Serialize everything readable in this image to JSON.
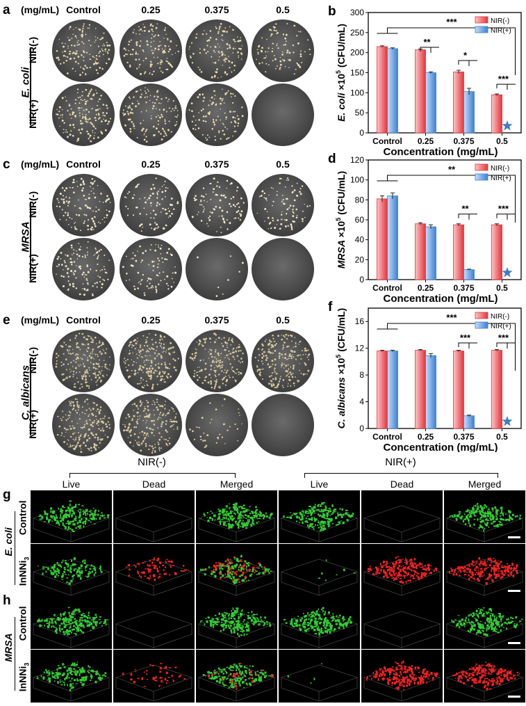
{
  "plates": [
    {
      "label": "a",
      "unit": "(mg/mL)",
      "columns": [
        "Control",
        "0.25",
        "0.375",
        "0.5"
      ],
      "organism": "E. coli",
      "rows": [
        "NIR(-)",
        "NIR(+)"
      ],
      "colony_density": [
        [
          0.55,
          0.5,
          0.45,
          0.35
        ],
        [
          0.6,
          0.5,
          0.4,
          0.0
        ]
      ],
      "colony_color": "#e8dcb0"
    },
    {
      "label": "c",
      "unit": "(mg/mL)",
      "columns": [
        "Control",
        "0.25",
        "0.375",
        "0.5"
      ],
      "organism": "MRSA",
      "rows": [
        "NIR(-)",
        "NIR(+)"
      ],
      "colony_density": [
        [
          0.5,
          0.35,
          0.35,
          0.35
        ],
        [
          0.5,
          0.35,
          0.03,
          0.0
        ]
      ],
      "colony_color": "#f0e8c8"
    },
    {
      "label": "e",
      "unit": "(mg/mL)",
      "columns": [
        "Control",
        "0.25",
        "0.375",
        "0.5"
      ],
      "organism": "C. albicans",
      "rows": [
        "NIR(-)",
        "NIR(+)"
      ],
      "colony_density": [
        [
          0.8,
          0.8,
          0.8,
          0.8
        ],
        [
          0.8,
          0.75,
          0.15,
          0.0
        ]
      ],
      "colony_color": "#d8caa0"
    }
  ],
  "chart_data": [
    {
      "panel": "b",
      "type": "bar",
      "categories": [
        "Control",
        "0.25",
        "0.375",
        "0.5"
      ],
      "series": [
        {
          "name": "NIR(-)",
          "values": [
            215,
            207,
            152,
            95
          ],
          "errors": [
            2,
            2,
            4,
            2
          ]
        },
        {
          "name": "NIR(+)",
          "values": [
            210,
            150,
            103,
            0
          ],
          "errors": [
            2,
            2,
            8,
            0
          ]
        }
      ],
      "xlabel": "Concentration (mg/mL)",
      "ylabel_prefix": "E. coli",
      "ylabel_suffix": "×10",
      "ylabel_exp": "5",
      "ylabel_unit": "(CFU/mL)",
      "ylim": [
        0,
        300
      ],
      "yticks": [
        "0",
        "50",
        "100",
        "150",
        "200",
        "250",
        "300"
      ],
      "legend_position": "top-right",
      "significance": [
        "***",
        "**",
        "*",
        "***"
      ],
      "star_category": "0.5"
    },
    {
      "panel": "d",
      "type": "bar",
      "categories": [
        "Control",
        "0.25",
        "0.375",
        "0.5"
      ],
      "series": [
        {
          "name": "NIR(-)",
          "values": [
            81,
            56,
            55,
            55
          ],
          "errors": [
            3,
            1,
            1,
            1
          ]
        },
        {
          "name": "NIR(+)",
          "values": [
            84,
            53,
            10,
            0
          ],
          "errors": [
            3,
            2,
            0.5,
            0
          ]
        }
      ],
      "xlabel": "Concentration (mg/mL)",
      "ylabel_prefix": "MRSA",
      "ylabel_suffix": "×10",
      "ylabel_exp": "5",
      "ylabel_unit": "(CFU/mL)",
      "ylim": [
        0,
        120
      ],
      "yticks": [
        "0",
        "20",
        "40",
        "60",
        "80",
        "100",
        "120"
      ],
      "legend_position": "top-right",
      "significance": [
        "**",
        "**",
        "***"
      ],
      "star_category": "0.5"
    },
    {
      "panel": "f",
      "type": "bar",
      "categories": [
        "Control",
        "0.25",
        "0.375",
        "0.5"
      ],
      "series": [
        {
          "name": "NIR(-)",
          "values": [
            11.6,
            11.7,
            11.6,
            11.7
          ],
          "errors": [
            0.1,
            0.1,
            0.1,
            0.1
          ]
        },
        {
          "name": "NIR(+)",
          "values": [
            11.6,
            10.9,
            1.9,
            0
          ],
          "errors": [
            0.1,
            0.3,
            0.1,
            0
          ]
        }
      ],
      "xlabel": "Concentration (mg/mL)",
      "ylabel_prefix": "C. albicans",
      "ylabel_suffix": "×10",
      "ylabel_exp": "5",
      "ylabel_unit": "(CFU/mL)",
      "ylim": [
        0,
        18
      ],
      "yticks": [
        "0",
        "4",
        "8",
        "12",
        "16"
      ],
      "ytick_values": [
        0,
        4,
        8,
        12,
        16
      ],
      "legend_position": "top-right",
      "significance": [
        "***",
        "***",
        "***"
      ],
      "star_category": "0.5"
    }
  ],
  "colors": {
    "nir_minus": "#e8323a",
    "nir_minus_light": "#f8c8c8",
    "nir_plus": "#3a80d8",
    "nir_plus_light": "#c8dcf4",
    "star": "#3a7fc8",
    "live": "#33cc33",
    "dead": "#ee2222"
  },
  "confocal": {
    "group_minus": "NIR(-)",
    "group_plus": "NIR(+)",
    "columns": [
      "Live",
      "Dead",
      "Merged",
      "Live",
      "Dead",
      "Merged"
    ],
    "panels": [
      {
        "label": "g",
        "organism": "E. coli",
        "rows": [
          "Control",
          "InNNi3"
        ],
        "row_main": [
          "Control",
          "InNNi"
        ],
        "row_sub": [
          "",
          "3"
        ]
      },
      {
        "label": "h",
        "organism": "MRSA",
        "rows": [
          "Control",
          "InNNi3"
        ],
        "row_main": [
          "Control",
          "InNNi"
        ],
        "row_sub": [
          "",
          "3"
        ]
      }
    ],
    "green_amount": [
      [
        1,
        0,
        1,
        1,
        0,
        1
      ],
      [
        0.6,
        0,
        0.6,
        0.03,
        0,
        0
      ],
      [
        1,
        0,
        1,
        1,
        0,
        1
      ],
      [
        0.8,
        0,
        0.8,
        0.02,
        0,
        0
      ]
    ],
    "red_amount": [
      [
        0,
        0,
        0,
        0,
        0,
        0
      ],
      [
        0,
        0.35,
        0.3,
        0,
        1,
        1
      ],
      [
        0,
        0,
        0,
        0,
        0,
        0
      ],
      [
        0,
        0.2,
        0.15,
        0,
        1,
        1
      ]
    ]
  }
}
